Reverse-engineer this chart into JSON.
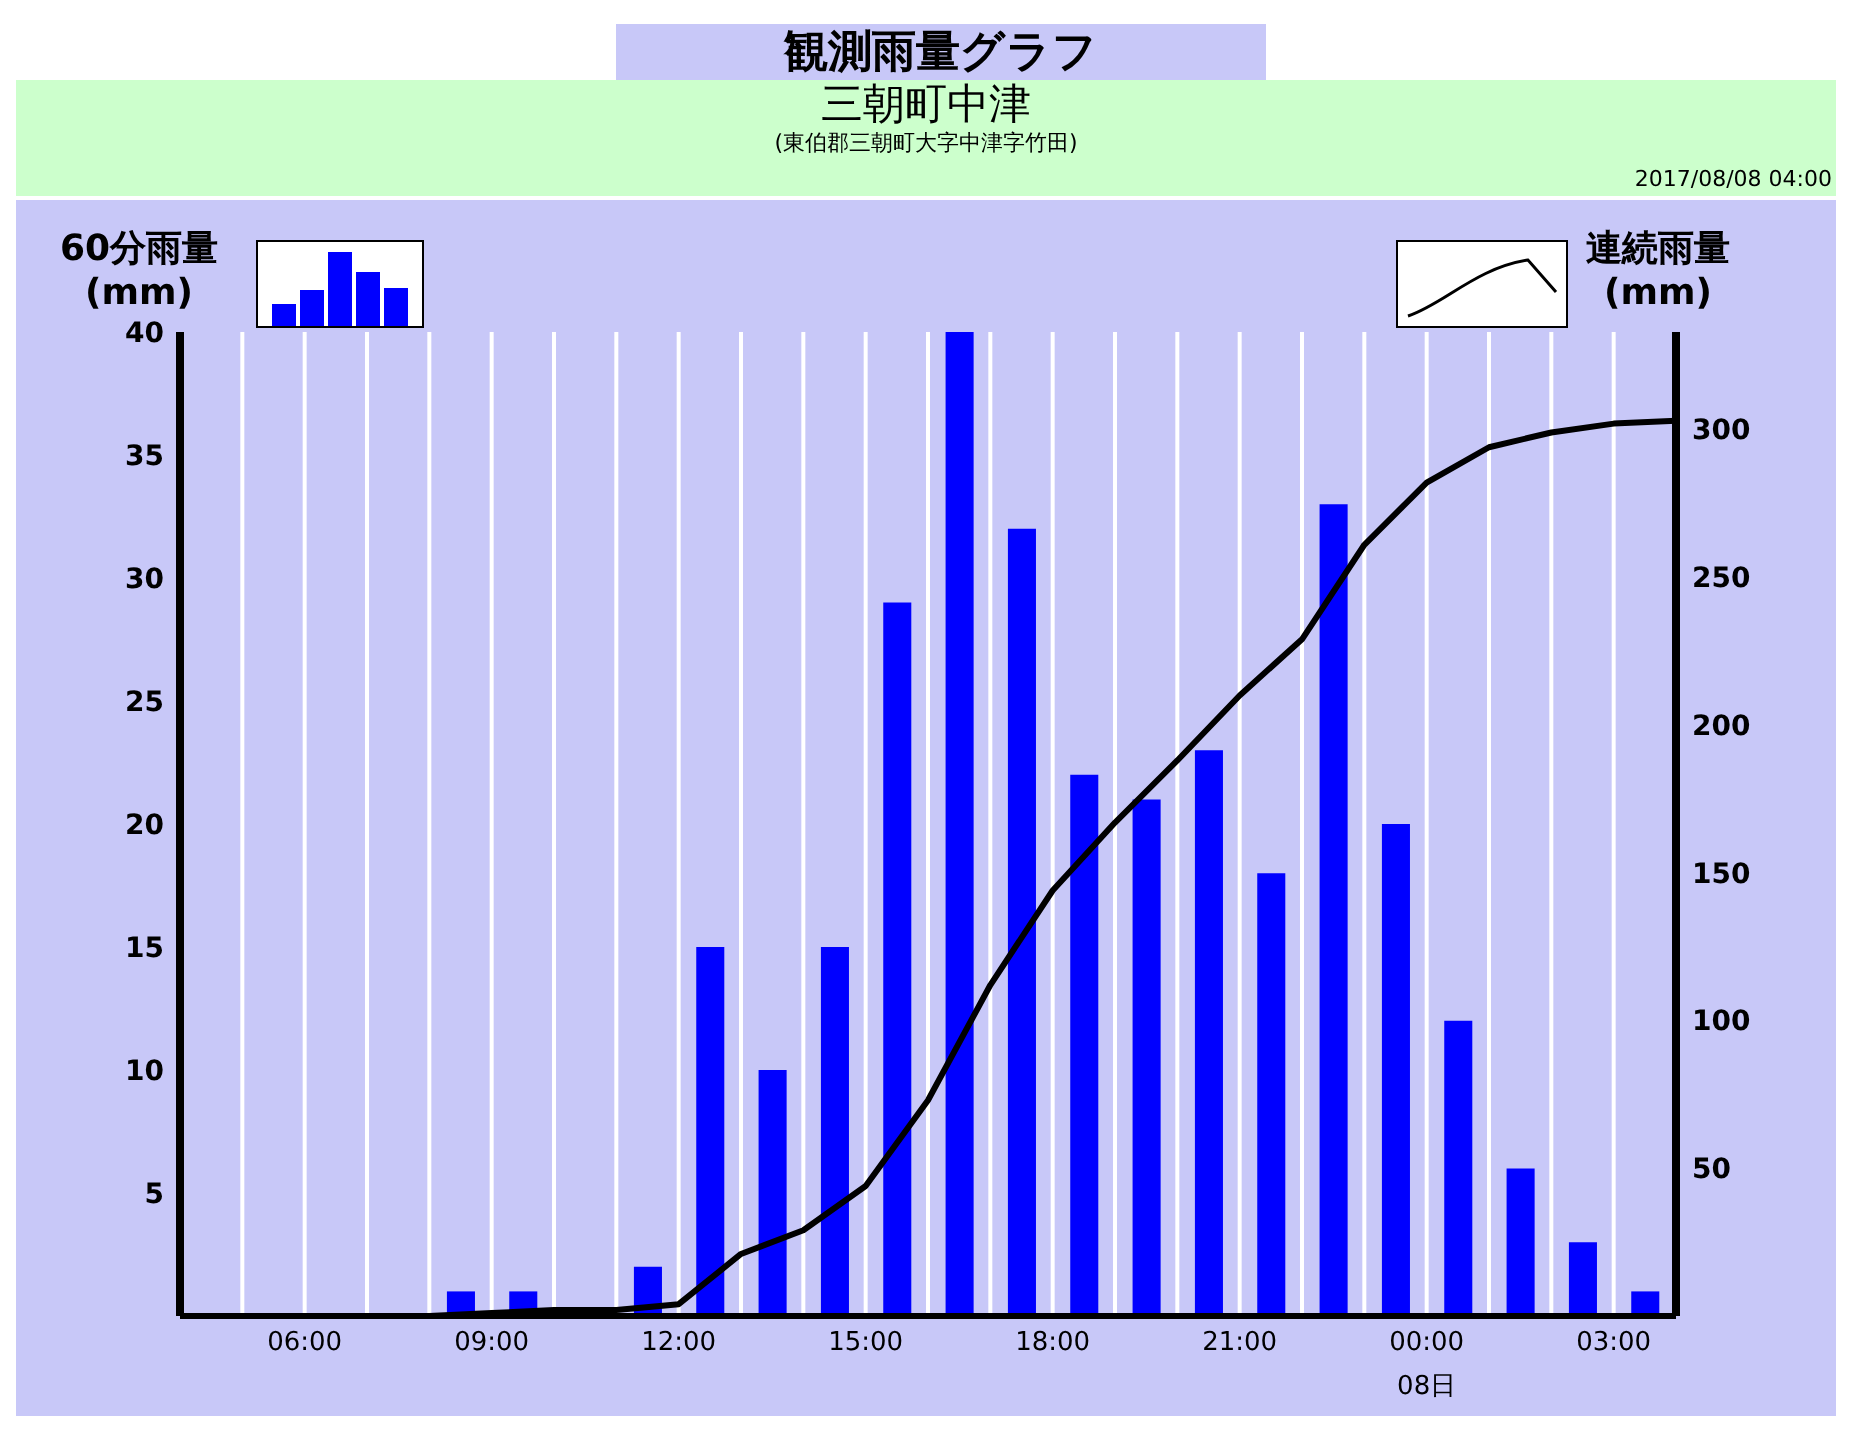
{
  "chart_data": {
    "type": "bar",
    "title": "観測雨量グラフ",
    "subtitle": "三朝町中津",
    "ylabel": "60分雨量\n(mm)",
    "y2label": "連続雨量\n(mm)",
    "annotations": [
      "(東伯郡三朝町大字中津字竹田)",
      "2017/08/08 04:00",
      "08日"
    ],
    "xlim": [
      "2017-08-07T04:00",
      "2017-08-08T04:00"
    ],
    "xticks": [
      {
        "value": "2017-08-07T05:00",
        "label": null
      },
      {
        "value": "2017-08-07T06:00",
        "label": "06:00"
      },
      {
        "value": "2017-08-07T07:00",
        "label": null
      },
      {
        "value": "2017-08-07T08:00",
        "label": null
      },
      {
        "value": "2017-08-07T09:00",
        "label": "09:00"
      },
      {
        "value": "2017-08-07T10:00",
        "label": null
      },
      {
        "value": "2017-08-07T11:00",
        "label": null
      },
      {
        "value": "2017-08-07T12:00",
        "label": "12:00"
      },
      {
        "value": "2017-08-07T13:00",
        "label": null
      },
      {
        "value": "2017-08-07T14:00",
        "label": null
      },
      {
        "value": "2017-08-07T15:00",
        "label": "15:00"
      },
      {
        "value": "2017-08-07T16:00",
        "label": null
      },
      {
        "value": "2017-08-07T17:00",
        "label": null
      },
      {
        "value": "2017-08-07T18:00",
        "label": "18:00"
      },
      {
        "value": "2017-08-07T19:00",
        "label": null
      },
      {
        "value": "2017-08-07T20:00",
        "label": null
      },
      {
        "value": "2017-08-07T21:00",
        "label": "21:00"
      },
      {
        "value": "2017-08-07T22:00",
        "label": null
      },
      {
        "value": "2017-08-07T23:00",
        "label": null
      },
      {
        "value": "2017-08-08T00:00",
        "label": "00:00"
      },
      {
        "value": "2017-08-08T01:00",
        "label": null
      },
      {
        "value": "2017-08-08T02:00",
        "label": null
      },
      {
        "value": "2017-08-08T03:00",
        "label": "03:00"
      }
    ],
    "ylim": [
      0,
      40
    ],
    "yticks": [
      5,
      10,
      15,
      20,
      25,
      30,
      35,
      40
    ],
    "y2lim": [
      0,
      333
    ],
    "y2ticks": [
      50,
      100,
      150,
      200,
      250,
      300
    ],
    "grid": "x",
    "series": [
      {
        "color": "#0000ff",
        "x": [
          "2017-08-07T04:30",
          "2017-08-07T05:30",
          "2017-08-07T06:30",
          "2017-08-07T07:30",
          "2017-08-07T08:30",
          "2017-08-07T09:30",
          "2017-08-07T10:30",
          "2017-08-07T11:30",
          "2017-08-07T12:30",
          "2017-08-07T13:30",
          "2017-08-07T14:30",
          "2017-08-07T15:30",
          "2017-08-07T16:30",
          "2017-08-07T17:30",
          "2017-08-07T18:30",
          "2017-08-07T19:30",
          "2017-08-07T20:30",
          "2017-08-07T21:30",
          "2017-08-07T22:30",
          "2017-08-07T23:30",
          "2017-08-08T00:30",
          "2017-08-08T01:30",
          "2017-08-08T02:30",
          "2017-08-08T03:30"
        ],
        "values": [
          0,
          0,
          0,
          0,
          1,
          1,
          0,
          2,
          15,
          10,
          15,
          29,
          40,
          32,
          22,
          21,
          23,
          18,
          33,
          20,
          12,
          6,
          3,
          1
        ]
      },
      {
        "type": "line",
        "axis": "y2",
        "color": "#000000",
        "x": [
          "2017-08-07T04:00",
          "2017-08-07T05:00",
          "2017-08-07T06:00",
          "2017-08-07T07:00",
          "2017-08-07T08:00",
          "2017-08-07T09:00",
          "2017-08-07T10:00",
          "2017-08-07T11:00",
          "2017-08-07T12:00",
          "2017-08-07T13:00",
          "2017-08-07T14:00",
          "2017-08-07T15:00",
          "2017-08-07T16:00",
          "2017-08-07T17:00",
          "2017-08-07T18:00",
          "2017-08-07T19:00",
          "2017-08-07T20:00",
          "2017-08-07T21:00",
          "2017-08-07T22:00",
          "2017-08-07T23:00",
          "2017-08-08T00:00",
          "2017-08-08T01:00",
          "2017-08-08T02:00",
          "2017-08-08T03:00",
          "2017-08-08T04:00"
        ],
        "values": [
          0,
          0,
          0,
          0,
          0,
          1,
          2,
          2,
          4,
          21,
          29,
          44,
          73,
          112,
          144,
          167,
          188,
          210,
          229,
          261,
          282,
          294,
          299,
          302,
          303
        ]
      }
    ]
  }
}
